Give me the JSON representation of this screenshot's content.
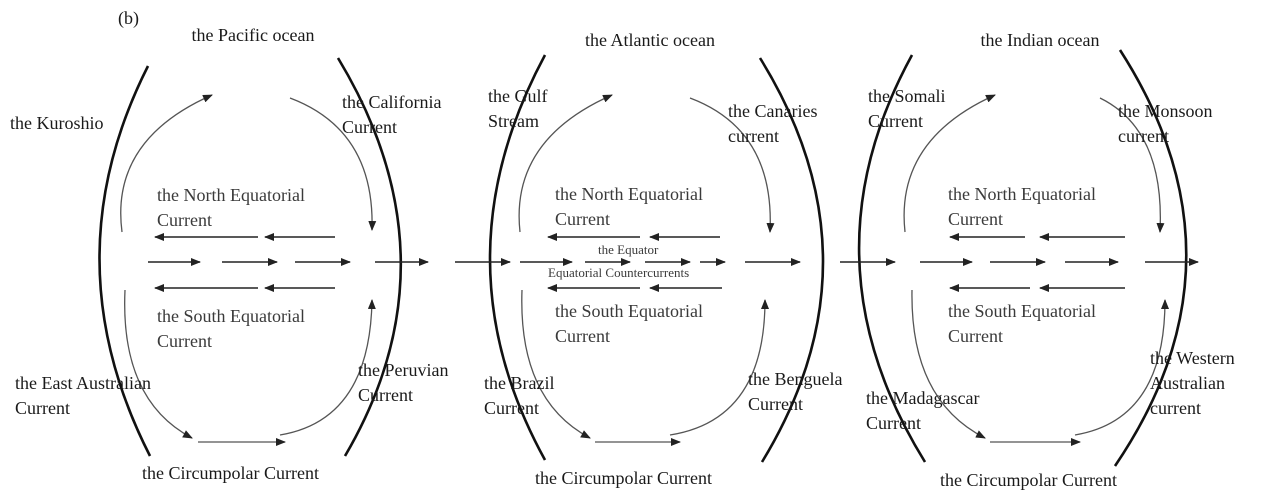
{
  "panel": "(b)",
  "oceans": [
    {
      "title": "the Pacific ocean",
      "labels": [
        [
          "the Kuroshio"
        ],
        [
          "the California",
          "Current"
        ],
        [
          "the North Equatorial",
          "Current"
        ],
        [
          "the South Equatorial",
          "Current"
        ],
        [
          "the East Australian",
          "Current"
        ],
        [
          "the Peruvian",
          "Current"
        ],
        [
          "the Circumpolar Current"
        ]
      ]
    },
    {
      "title": "the Atlantic ocean",
      "labels": [
        [
          "the Gulf",
          "Stream"
        ],
        [
          "the Canaries",
          "current"
        ],
        [
          "the North Equatorial",
          "Current"
        ],
        [
          "the South Equatorial",
          "Current"
        ],
        [
          "the Brazil",
          "Current"
        ],
        [
          "the Benguela",
          "Current"
        ],
        [
          "the Circumpolar Current"
        ]
      ]
    },
    {
      "title": "the Indian ocean",
      "labels": [
        [
          "the Somali",
          "Current"
        ],
        [
          "the Monsoon",
          "current"
        ],
        [
          "the North Equatorial",
          "Current"
        ],
        [
          "the South Equatorial",
          "Current"
        ],
        [
          "the Madagascar",
          "Current"
        ],
        [
          "the Western",
          "Australian",
          "current"
        ],
        [
          "the Circumpolar Current"
        ]
      ]
    }
  ],
  "equator": {
    "label": "the Equator",
    "countercurrents": "Equatorial Countercurrents"
  }
}
